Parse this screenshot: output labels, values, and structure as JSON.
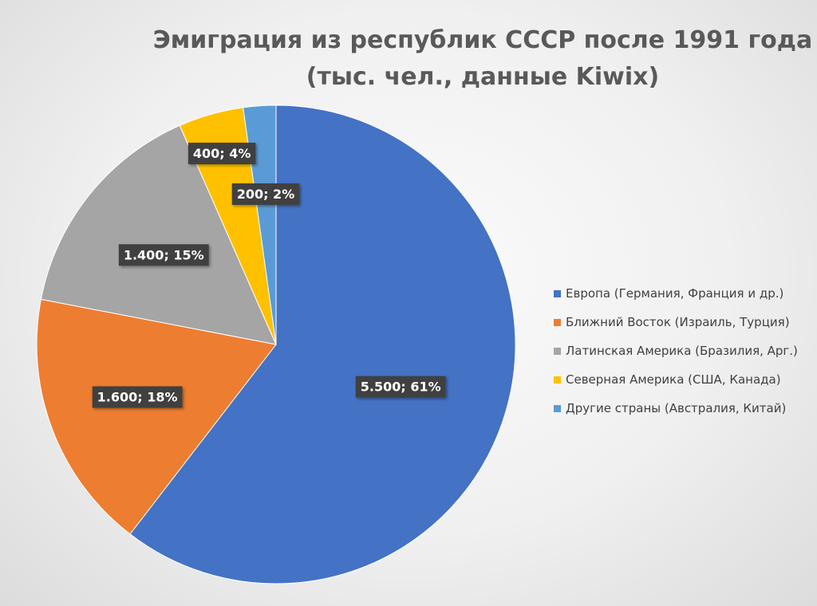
{
  "chart_data": {
    "type": "pie",
    "title_line1": "Эмиграция из республик СССР после 1991 года",
    "title_line2": "(тыс. чел., данные Kiwix)",
    "slices": [
      {
        "name": "Европа (Германия, Франция и др.)",
        "value": 5500,
        "label": "5.500; 61%",
        "color": "#4472C4"
      },
      {
        "name": "Ближний Восток (Израиль, Турция)",
        "value": 1600,
        "label": "1.600; 18%",
        "color": "#ED7D31"
      },
      {
        "name": "Латинская Америка (Бразилия, Арг.)",
        "value": 1400,
        "label": "1.400; 15%",
        "color": "#A5A5A5"
      },
      {
        "name": "Северная Америка (США, Канада)",
        "value": 400,
        "label": "400; 4%",
        "color": "#FFC000"
      },
      {
        "name": "Другие страны (Австралия, Китай)",
        "value": 200,
        "label": "200; 2%",
        "color": "#5B9BD5"
      }
    ],
    "legend_position": "right"
  }
}
